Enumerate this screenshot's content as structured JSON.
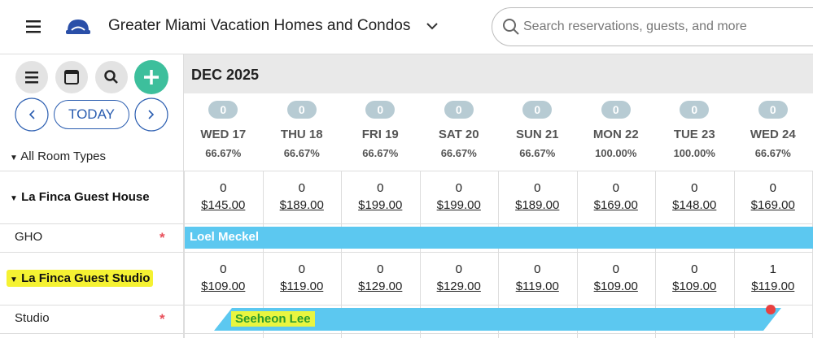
{
  "header": {
    "property": "Greater Miami Vacation Homes and Condos",
    "search_placeholder": "Search reservations, guests, and more"
  },
  "toolbar": {
    "today": "TODAY"
  },
  "month": "DEC 2025",
  "filter": "All Room Types",
  "days": [
    {
      "badge": 0,
      "day": "WED 17",
      "occupancy": "66.67%"
    },
    {
      "badge": 0,
      "day": "THU 18",
      "occupancy": "66.67%"
    },
    {
      "badge": 0,
      "day": "FRI 19",
      "occupancy": "66.67%"
    },
    {
      "badge": 0,
      "day": "SAT 20",
      "occupancy": "66.67%"
    },
    {
      "badge": 0,
      "day": "SUN 21",
      "occupancy": "66.67%"
    },
    {
      "badge": 0,
      "day": "MON 22",
      "occupancy": "100.00%"
    },
    {
      "badge": 0,
      "day": "TUE 23",
      "occupancy": "100.00%"
    },
    {
      "badge": 0,
      "day": "WED 24",
      "occupancy": "66.67%"
    }
  ],
  "room_types": [
    {
      "name": "La Finca Guest House",
      "availability": [
        0,
        0,
        0,
        0,
        0,
        0,
        0,
        0
      ],
      "rates": [
        "$145.00",
        "$189.00",
        "$199.00",
        "$199.00",
        "$189.00",
        "$169.00",
        "$148.00",
        "$169.00"
      ],
      "room": {
        "name": "GHO",
        "marker": "*",
        "booking": "Loel Meckel"
      }
    },
    {
      "name": "La Finca Guest Studio",
      "availability": [
        0,
        0,
        0,
        0,
        0,
        0,
        0,
        1
      ],
      "rates": [
        "$109.00",
        "$119.00",
        "$129.00",
        "$129.00",
        "$119.00",
        "$109.00",
        "$109.00",
        "$119.00"
      ],
      "room": {
        "name": "Studio",
        "marker": "*",
        "booking": "Seeheon Lee"
      }
    }
  ]
}
